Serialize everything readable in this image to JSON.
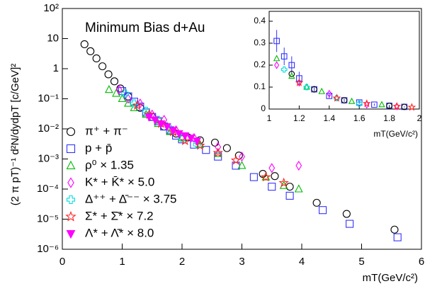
{
  "chart_data": [
    {
      "type": "scatter",
      "log_y": true,
      "annotation": "Minimum Bias d+Au",
      "xlabel": "mT(GeV/c²)",
      "ylabel": "(2 π pT)⁻¹ d²N/dydpT [c/GeV]²",
      "xlim": [
        0,
        6
      ],
      "xticks": [
        0,
        1,
        2,
        3,
        4,
        5,
        6
      ],
      "ylim": [
        1e-06,
        100
      ],
      "yticks": [
        {
          "value": 1e-06,
          "label": "10⁻⁶"
        },
        {
          "value": 1e-05,
          "label": "10⁻⁵"
        },
        {
          "value": 0.0001,
          "label": "10⁻⁴"
        },
        {
          "value": 0.001,
          "label": "10⁻³"
        },
        {
          "value": 0.01,
          "label": "10⁻²"
        },
        {
          "value": 0.1,
          "label": "10⁻¹"
        },
        1,
        10,
        {
          "value": 100,
          "label": "10²"
        }
      ],
      "legend": "lower left",
      "series": [
        {
          "name": "π⁺ + π⁻",
          "color": "#000000",
          "marker": "circle",
          "filled": false,
          "x": [
            0.37,
            0.47,
            0.57,
            0.67,
            0.77,
            0.87,
            0.97,
            1.1,
            1.3,
            1.5,
            1.7,
            1.9,
            2.1,
            2.3,
            2.55,
            2.75,
            2.95,
            3.35,
            3.55,
            3.8,
            4.25,
            4.75,
            5.55
          ],
          "values": [
            6.5,
            3.8,
            2.2,
            1.2,
            0.65,
            0.38,
            0.22,
            0.12,
            0.05,
            0.025,
            0.012,
            0.007,
            0.0052,
            0.0042,
            0.0035,
            0.0023,
            0.0013,
            0.00032,
            0.00027,
            0.00012,
            3.5e-05,
            1.5e-05,
            4.5e-06
          ]
        },
        {
          "name": "p + p̄",
          "color": "#3333ff",
          "marker": "square",
          "filled": false,
          "x": [
            1.0,
            1.1,
            1.2,
            1.3,
            1.4,
            1.5,
            1.6,
            1.7,
            1.8,
            1.9,
            2.0,
            2.2,
            2.4,
            2.6,
            2.9,
            3.2,
            3.5,
            3.8,
            4.35,
            4.8,
            5.6
          ],
          "values": [
            0.18,
            0.12,
            0.08,
            0.055,
            0.035,
            0.025,
            0.018,
            0.012,
            0.009,
            0.006,
            0.0045,
            0.003,
            0.002,
            0.0012,
            0.0006,
            0.00025,
            0.00012,
            6e-05,
            2e-05,
            7e-06,
            2.5e-06
          ]
        },
        {
          "name": "ρ⁰ × 1.35",
          "color": "#00bb00",
          "marker": "triangle",
          "filled": false,
          "x": [
            0.78,
            0.9,
            1.0,
            1.1,
            1.2,
            1.4,
            1.6,
            1.8,
            2.0,
            2.3,
            2.6,
            3.0,
            3.4,
            3.7,
            3.95
          ],
          "values": [
            0.2,
            0.15,
            0.1,
            0.07,
            0.05,
            0.03,
            0.015,
            0.008,
            0.005,
            0.003,
            0.0015,
            0.0006,
            0.00025,
            0.00013,
            0.0001
          ]
        },
        {
          "name": "K* + K̄* × 5.0",
          "color": "#ff00ff",
          "marker": "diamond",
          "filled": false,
          "x": [
            0.95,
            1.1,
            1.3,
            1.5,
            1.7,
            1.9,
            2.2,
            2.6,
            3.0,
            3.5,
            3.95
          ],
          "values": [
            0.2,
            0.1,
            0.07,
            0.03,
            0.02,
            0.009,
            0.005,
            0.0025,
            0.0012,
            0.0005,
            0.0006
          ]
        },
        {
          "name": "Δ⁺⁺ + Δ̄⁻⁻ × 3.75",
          "color": "#00dddd",
          "marker": "cross",
          "filled": false,
          "x": [
            1.05,
            1.2,
            1.4,
            1.6,
            1.8,
            2.0,
            2.25
          ],
          "values": [
            0.15,
            0.07,
            0.04,
            0.02,
            0.01,
            0.005,
            0.003
          ]
        },
        {
          "name": "Σ* + Σ̄* × 7.2",
          "color": "#ff2222",
          "marker": "star",
          "filled": false,
          "x": [
            1.25,
            1.45,
            1.65,
            1.85,
            2.05,
            2.3,
            2.6,
            2.9,
            3.4,
            3.7
          ],
          "values": [
            0.06,
            0.03,
            0.015,
            0.008,
            0.004,
            0.0028,
            0.0016,
            0.0009,
            0.00025,
            0.00016
          ]
        },
        {
          "name": "Λ* + Λ̄* × 8.0",
          "color": "#ff00ff",
          "marker": "triangle-down",
          "filled": true,
          "x": [
            1.45,
            1.55,
            1.65,
            1.75,
            1.85,
            1.95,
            2.05,
            2.15,
            2.25
          ],
          "values": [
            0.025,
            0.02,
            0.015,
            0.012,
            0.009,
            0.007,
            0.006,
            0.005,
            0.004
          ]
        }
      ]
    },
    {
      "type": "scatter",
      "log_y": false,
      "xlabel": "mT(GeV/c²)",
      "xlim": [
        1,
        2
      ],
      "xticks": [
        1,
        1.2,
        1.4,
        1.6,
        1.8,
        2
      ],
      "ylim": [
        0,
        0.4
      ],
      "yticks": [
        0,
        0.1,
        0.2,
        0.3,
        0.4
      ],
      "series": [
        {
          "color": "#3333ff",
          "marker": "square",
          "filled": false,
          "x": [
            1.05,
            1.1,
            1.15,
            1.2,
            1.3,
            1.4,
            1.5,
            1.6,
            1.7,
            1.8,
            1.9
          ],
          "values": [
            0.31,
            0.24,
            0.2,
            0.14,
            0.09,
            0.06,
            0.04,
            0.03,
            0.02,
            0.015,
            0.01
          ],
          "errors": [
            0.05,
            0.04,
            0.04,
            0.03,
            0.015,
            0.01,
            0.008,
            0.006,
            0.005,
            0.004,
            0.003
          ]
        },
        {
          "color": "#000000",
          "marker": "circle",
          "filled": false,
          "x": [
            1.15,
            1.3,
            1.5,
            1.8,
            1.9
          ],
          "values": [
            0.16,
            0.09,
            0.04,
            0.015,
            0.01
          ]
        },
        {
          "color": "#00bb00",
          "marker": "triangle",
          "filled": false,
          "x": [
            1.05,
            1.15,
            1.25,
            1.35,
            1.55,
            1.75
          ],
          "values": [
            0.23,
            0.15,
            0.1,
            0.08,
            0.035,
            0.02
          ]
        },
        {
          "color": "#ff00ff",
          "marker": "diamond",
          "filled": false,
          "x": [
            1.05,
            1.2,
            1.4,
            1.65,
            1.85
          ],
          "values": [
            0.2,
            0.12,
            0.07,
            0.02,
            0.012
          ]
        },
        {
          "color": "#00dddd",
          "marker": "cross",
          "filled": false,
          "x": [
            1.1,
            1.25,
            1.45,
            1.6
          ],
          "values": [
            0.18,
            0.1,
            0.05,
            0.025
          ]
        },
        {
          "color": "#ff2222",
          "marker": "star",
          "filled": false,
          "x": [
            1.2,
            1.45,
            1.65,
            1.85,
            1.95
          ],
          "values": [
            0.12,
            0.05,
            0.025,
            0.012,
            0.008
          ]
        }
      ]
    }
  ]
}
